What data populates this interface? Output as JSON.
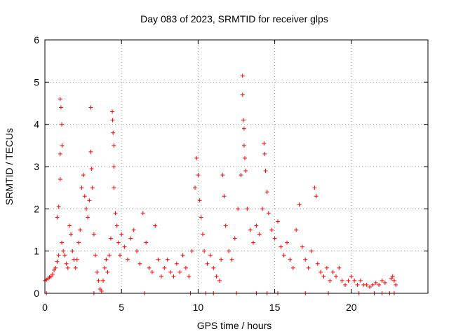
{
  "chart_data": {
    "type": "scatter",
    "title": "Day 083 of 2023, SRMTID for receiver glps",
    "xlabel": "GPS time / hours",
    "ylabel": "SRMTID / TECUs",
    "xlim": [
      0,
      25
    ],
    "ylim": [
      0,
      6
    ],
    "xticks": [
      0,
      5,
      10,
      15,
      20
    ],
    "yticks": [
      0,
      1,
      2,
      3,
      4,
      5,
      6
    ],
    "grid": true,
    "marker": "+",
    "series": [
      {
        "name": "SRMTID",
        "color": "#ff0000",
        "points": [
          [
            0.0,
            0.3
          ],
          [
            0.1,
            0.32
          ],
          [
            0.2,
            0.35
          ],
          [
            0.3,
            0.38
          ],
          [
            0.4,
            0.4
          ],
          [
            0.5,
            0.45
          ],
          [
            0.6,
            0.55
          ],
          [
            0.7,
            0.6
          ],
          [
            0.8,
            0.75
          ],
          [
            0.9,
            0.9
          ],
          [
            1.0,
            4.6
          ],
          [
            1.05,
            4.4
          ],
          [
            1.1,
            4.0
          ],
          [
            1.12,
            3.5
          ],
          [
            1.0,
            3.3
          ],
          [
            1.0,
            2.7
          ],
          [
            0.9,
            2.05
          ],
          [
            0.8,
            1.8
          ],
          [
            1.1,
            1.2
          ],
          [
            1.2,
            1.0
          ],
          [
            1.3,
            0.9
          ],
          [
            1.4,
            0.7
          ],
          [
            1.5,
            0.6
          ],
          [
            1.6,
            1.6
          ],
          [
            1.7,
            1.4
          ],
          [
            1.8,
            1.0
          ],
          [
            1.9,
            0.8
          ],
          [
            2.0,
            0.6
          ],
          [
            2.1,
            0.8
          ],
          [
            2.2,
            1.2
          ],
          [
            2.3,
            1.5
          ],
          [
            2.4,
            2.5
          ],
          [
            2.5,
            2.8
          ],
          [
            2.6,
            2.3
          ],
          [
            2.7,
            2.0
          ],
          [
            2.8,
            1.8
          ],
          [
            2.9,
            2.2
          ],
          [
            3.0,
            4.4
          ],
          [
            3.0,
            3.35
          ],
          [
            3.05,
            2.95
          ],
          [
            3.1,
            2.5
          ],
          [
            3.2,
            1.4
          ],
          [
            3.3,
            0.9
          ],
          [
            3.4,
            0.5
          ],
          [
            3.5,
            0.3
          ],
          [
            3.6,
            0.1
          ],
          [
            3.7,
            0.05
          ],
          [
            3.8,
            0.3
          ],
          [
            3.9,
            0.6
          ],
          [
            4.0,
            0.8
          ],
          [
            4.1,
            0.5
          ],
          [
            4.2,
            0.9
          ],
          [
            4.3,
            1.3
          ],
          [
            4.4,
            4.3
          ],
          [
            4.42,
            4.1
          ],
          [
            4.45,
            3.8
          ],
          [
            4.5,
            3.5
          ],
          [
            4.5,
            3.0
          ],
          [
            4.5,
            2.5
          ],
          [
            4.6,
            1.9
          ],
          [
            4.7,
            1.6
          ],
          [
            4.8,
            1.2
          ],
          [
            4.9,
            0.9
          ],
          [
            5.0,
            1.4
          ],
          [
            5.2,
            1.1
          ],
          [
            5.4,
            0.8
          ],
          [
            5.6,
            1.3
          ],
          [
            5.8,
            1.5
          ],
          [
            6.0,
            1.0
          ],
          [
            6.2,
            0.7
          ],
          [
            6.4,
            1.9
          ],
          [
            6.6,
            1.2
          ],
          [
            6.8,
            0.6
          ],
          [
            7.0,
            0.5
          ],
          [
            7.2,
            1.6
          ],
          [
            7.4,
            0.8
          ],
          [
            7.6,
            0.4
          ],
          [
            7.8,
            0.6
          ],
          [
            8.0,
            0.8
          ],
          [
            8.2,
            0.5
          ],
          [
            8.4,
            0.4
          ],
          [
            8.6,
            0.7
          ],
          [
            8.8,
            0.5
          ],
          [
            9.0,
            0.9
          ],
          [
            9.2,
            0.6
          ],
          [
            9.4,
            0.4
          ],
          [
            9.6,
            1.0
          ],
          [
            9.8,
            2.5
          ],
          [
            9.9,
            3.2
          ],
          [
            10.0,
            2.8
          ],
          [
            10.1,
            2.2
          ],
          [
            10.2,
            1.8
          ],
          [
            10.3,
            1.4
          ],
          [
            10.4,
            1.0
          ],
          [
            10.6,
            0.7
          ],
          [
            10.8,
            0.9
          ],
          [
            11.0,
            0.6
          ],
          [
            11.2,
            0.4
          ],
          [
            11.4,
            0.3
          ],
          [
            11.5,
            0.8
          ],
          [
            11.6,
            2.8
          ],
          [
            11.7,
            2.3
          ],
          [
            11.8,
            1.6
          ],
          [
            12.0,
            1.0
          ],
          [
            12.2,
            0.8
          ],
          [
            12.4,
            1.3
          ],
          [
            12.6,
            2.0
          ],
          [
            12.8,
            2.8
          ],
          [
            12.9,
            5.15
          ],
          [
            12.9,
            4.7
          ],
          [
            12.95,
            4.1
          ],
          [
            13.0,
            3.9
          ],
          [
            13.0,
            3.5
          ],
          [
            13.05,
            3.2
          ],
          [
            13.1,
            2.9
          ],
          [
            13.2,
            2.0
          ],
          [
            13.4,
            1.5
          ],
          [
            13.6,
            1.2
          ],
          [
            13.8,
            1.6
          ],
          [
            14.0,
            1.4
          ],
          [
            14.2,
            2.0
          ],
          [
            14.3,
            3.55
          ],
          [
            14.35,
            3.3
          ],
          [
            14.4,
            2.9
          ],
          [
            14.5,
            2.4
          ],
          [
            14.6,
            1.9
          ],
          [
            14.8,
            1.5
          ],
          [
            15.0,
            1.3
          ],
          [
            15.2,
            1.7
          ],
          [
            15.4,
            1.1
          ],
          [
            15.6,
            0.9
          ],
          [
            15.8,
            1.2
          ],
          [
            16.0,
            0.8
          ],
          [
            16.2,
            0.6
          ],
          [
            16.4,
            1.5
          ],
          [
            16.6,
            2.1
          ],
          [
            16.8,
            1.1
          ],
          [
            17.0,
            0.8
          ],
          [
            17.2,
            0.6
          ],
          [
            17.4,
            1.0
          ],
          [
            17.6,
            2.5
          ],
          [
            17.7,
            2.3
          ],
          [
            17.8,
            0.7
          ],
          [
            18.0,
            0.5
          ],
          [
            18.2,
            0.4
          ],
          [
            18.4,
            0.6
          ],
          [
            18.6,
            0.3
          ],
          [
            18.8,
            0.5
          ],
          [
            19.0,
            0.4
          ],
          [
            19.2,
            0.6
          ],
          [
            19.4,
            0.3
          ],
          [
            19.6,
            0.2
          ],
          [
            19.8,
            0.3
          ],
          [
            20.0,
            0.4
          ],
          [
            20.2,
            0.3
          ],
          [
            20.4,
            0.2
          ],
          [
            20.6,
            0.3
          ],
          [
            20.8,
            0.2
          ],
          [
            21.0,
            0.2
          ],
          [
            21.2,
            0.15
          ],
          [
            21.4,
            0.2
          ],
          [
            21.6,
            0.25
          ],
          [
            21.8,
            0.2
          ],
          [
            22.0,
            0.3
          ],
          [
            22.2,
            0.25
          ],
          [
            22.6,
            0.35
          ],
          [
            22.7,
            0.4
          ],
          [
            22.8,
            0.3
          ],
          [
            22.9,
            0.2
          ],
          [
            0.1,
            0.0
          ],
          [
            3.2,
            0.0
          ],
          [
            6.5,
            0.0
          ],
          [
            9.5,
            0.0
          ],
          [
            10.5,
            0.0
          ],
          [
            11.0,
            0.0
          ],
          [
            12.5,
            0.0
          ],
          [
            13.8,
            0.0
          ],
          [
            14.5,
            0.0
          ],
          [
            15.2,
            0.0
          ],
          [
            17.0,
            0.0
          ],
          [
            18.5,
            0.0
          ],
          [
            20.5,
            0.0
          ],
          [
            21.5,
            0.0
          ],
          [
            22.0,
            0.0
          ],
          [
            22.5,
            0.0
          ],
          [
            22.8,
            0.0
          ]
        ]
      }
    ]
  }
}
